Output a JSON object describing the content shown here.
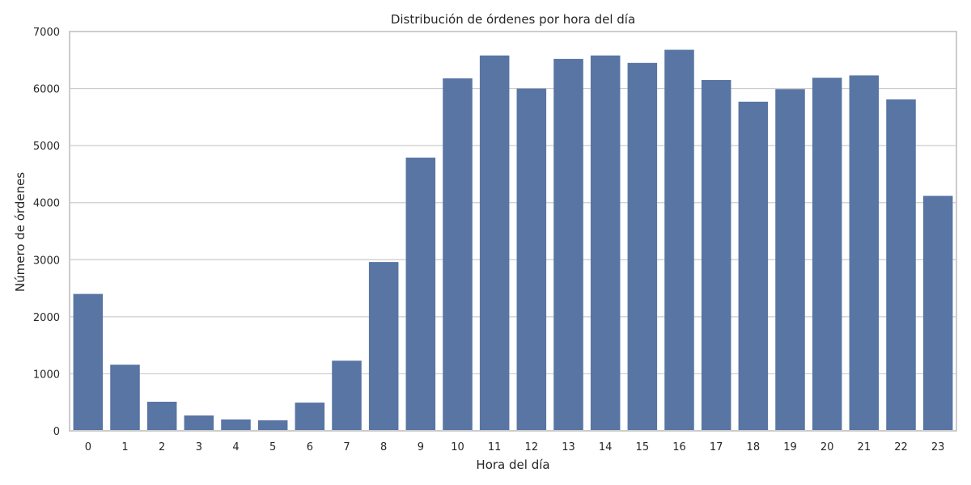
{
  "chart_data": {
    "type": "bar",
    "title": "Distribución de órdenes por hora del día",
    "xlabel": "Hora del día",
    "ylabel": "Número de órdenes",
    "categories": [
      "0",
      "1",
      "2",
      "3",
      "4",
      "5",
      "6",
      "7",
      "8",
      "9",
      "10",
      "11",
      "12",
      "13",
      "14",
      "15",
      "16",
      "17",
      "18",
      "19",
      "20",
      "21",
      "22",
      "23"
    ],
    "values": [
      2400,
      1160,
      510,
      270,
      200,
      185,
      495,
      1230,
      2960,
      4790,
      6180,
      6580,
      6000,
      6520,
      6580,
      6450,
      6680,
      6150,
      5770,
      5990,
      6190,
      6230,
      5810,
      4120
    ],
    "yticks": [
      0,
      1000,
      2000,
      3000,
      4000,
      5000,
      6000,
      7000
    ],
    "ylim": [
      0,
      7000
    ],
    "grid": true,
    "bar_color": "#5875a4",
    "grid_color": "#cccccc",
    "frame_color": "#cccccc"
  }
}
